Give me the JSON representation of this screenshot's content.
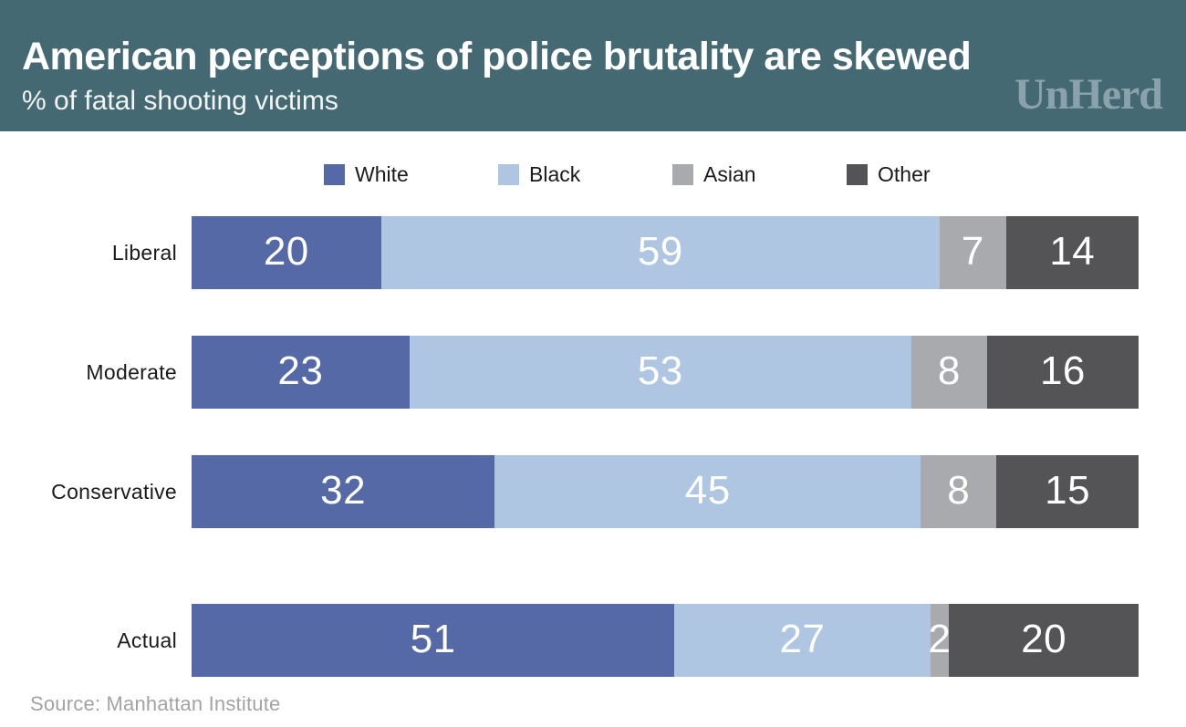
{
  "header": {
    "title": "American perceptions of police brutality are skewed",
    "subtitle": "% of fatal shooting victims",
    "logo": "UnHerd"
  },
  "colors": {
    "banner_background": "#456973",
    "logo_text": "#8aa2ab",
    "value_label_text": "#ffffff",
    "axis_label_text": "#1a1a1a",
    "source_text": "#a3a3a3"
  },
  "chart_data": {
    "type": "bar",
    "stacked": true,
    "orientation": "horizontal",
    "title": "American perceptions of police brutality are skewed",
    "subtitle": "% of fatal shooting victims",
    "categories": [
      "Liberal",
      "Moderate",
      "Conservative",
      "Actual"
    ],
    "series": [
      {
        "name": "White",
        "color": "#5569a7",
        "values": [
          20,
          23,
          32,
          51
        ]
      },
      {
        "name": "Black",
        "color": "#aec6e1",
        "values": [
          59,
          53,
          45,
          27
        ]
      },
      {
        "name": "Asian",
        "color": "#a8aaad",
        "values": [
          7,
          8,
          8,
          2
        ]
      },
      {
        "name": "Other",
        "color": "#545456",
        "values": [
          14,
          16,
          15,
          20
        ]
      }
    ],
    "xlim": [
      0,
      100
    ],
    "value_labels": true,
    "legend_position": "top",
    "grid": false,
    "notes": "Actual row is visually separated from the three perception rows"
  },
  "source": "Source: Manhattan Institute"
}
